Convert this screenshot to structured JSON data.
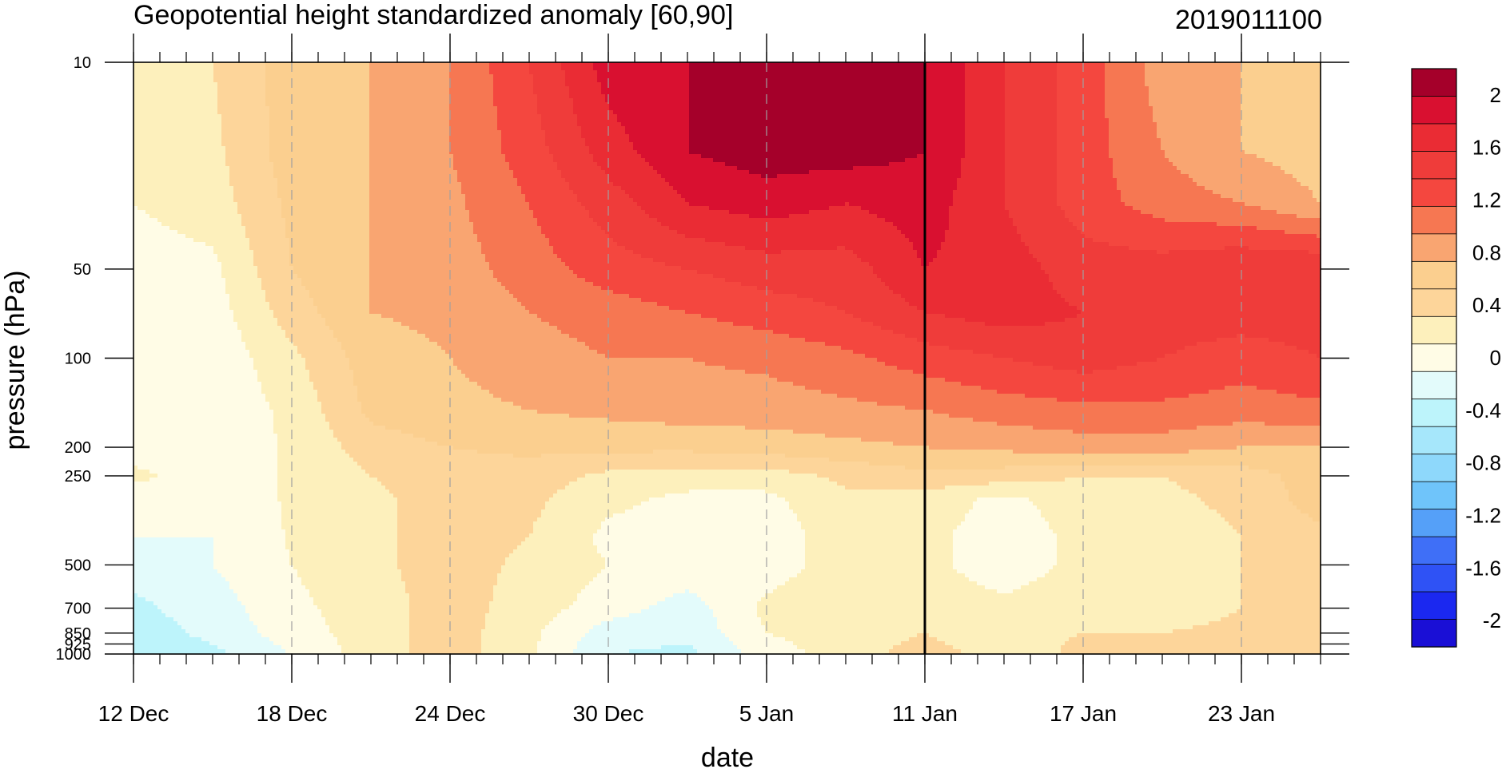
{
  "chart_data": {
    "type": "heatmap",
    "title": "Geopotential height standardized anomaly [60,90]",
    "subtitle_right": "2019011100",
    "xlabel": "date",
    "ylabel": "pressure (hPa)",
    "x_tick_labels": [
      "12 Dec",
      "18 Dec",
      "24 Dec",
      "30 Dec",
      "5 Jan",
      "11 Jan",
      "17 Jan",
      "23 Jan"
    ],
    "x_tick_day_offsets": [
      0,
      6,
      12,
      18,
      24,
      30,
      36,
      42
    ],
    "x_range_day_offsets": [
      0,
      45
    ],
    "y_tick_labels": [
      "10",
      "50",
      "100",
      "200",
      "250",
      "500",
      "700",
      "850",
      "925",
      "1000"
    ],
    "y_tick_values": [
      10,
      50,
      100,
      200,
      250,
      500,
      700,
      850,
      925,
      1000
    ],
    "y_range": [
      10,
      1000
    ],
    "y_scale": "log",
    "y_inverted": true,
    "marker_line_label": "11 Jan",
    "colorbar": {
      "labels": [
        "2",
        "1.6",
        "1.2",
        "0.8",
        "0.4",
        "0",
        "-0.4",
        "-0.8",
        "-1.2",
        "-1.6",
        "-2"
      ],
      "label_values": [
        2,
        1.6,
        1.2,
        0.8,
        0.4,
        0,
        -0.4,
        -0.8,
        -1.2,
        -1.6,
        -2
      ],
      "levels": [
        -2.2,
        -2.0,
        -1.8,
        -1.6,
        -1.4,
        -1.2,
        -1.0,
        -0.8,
        -0.6,
        -0.4,
        -0.2,
        0.0,
        0.2,
        0.4,
        0.6,
        0.8,
        1.0,
        1.2,
        1.4,
        1.6,
        1.8,
        2.0,
        2.2
      ],
      "colors": [
        "#1a0fd6",
        "#1b28f0",
        "#2f52f5",
        "#3f6ff7",
        "#55a0f8",
        "#6fc4fa",
        "#8ed8fb",
        "#a6e7fb",
        "#bdf4fb",
        "#e3fbfb",
        "#fffce6",
        "#fdf0bc",
        "#fdd59a",
        "#fbcf8f",
        "#f9a571",
        "#f67752",
        "#f4473f",
        "#ef3c3a",
        "#ea2c34",
        "#d91030",
        "#a5002a"
      ]
    },
    "field": {
      "x_day_offsets": [
        0,
        3,
        6,
        9,
        12,
        15,
        18,
        21,
        24,
        27,
        30,
        33,
        36,
        39,
        42,
        45
      ],
      "pressure_levels": [
        10,
        20,
        30,
        50,
        70,
        100,
        150,
        200,
        250,
        300,
        400,
        500,
        700,
        850,
        925,
        1000
      ],
      "values": [
        [
          0.1,
          0.2,
          0.5,
          0.6,
          0.8,
          1.2,
          1.7,
          1.8,
          1.9,
          1.8,
          1.8,
          1.4,
          1.1,
          0.7,
          0.6,
          0.5
        ],
        [
          0.05,
          0.15,
          0.5,
          0.6,
          0.8,
          1.1,
          1.5,
          1.8,
          1.9,
          1.9,
          1.8,
          1.4,
          1.1,
          0.8,
          0.6,
          0.5
        ],
        [
          0.0,
          0.1,
          0.45,
          0.6,
          0.75,
          1.0,
          1.3,
          1.6,
          1.7,
          1.6,
          1.7,
          1.4,
          1.1,
          0.9,
          0.8,
          0.6
        ],
        [
          -0.1,
          -0.05,
          0.4,
          0.6,
          0.7,
          0.9,
          1.1,
          1.2,
          1.3,
          1.3,
          1.6,
          1.5,
          1.3,
          1.3,
          1.4,
          1.4
        ],
        [
          -0.1,
          -0.1,
          0.3,
          0.6,
          0.65,
          0.8,
          0.9,
          1.0,
          1.1,
          1.2,
          1.4,
          1.5,
          1.4,
          1.3,
          1.3,
          1.3
        ],
        [
          -0.15,
          -0.15,
          0.15,
          0.5,
          0.6,
          0.7,
          0.8,
          0.8,
          0.85,
          0.95,
          1.1,
          1.2,
          1.3,
          1.2,
          1.1,
          1.2
        ],
        [
          -0.2,
          -0.15,
          0.05,
          0.45,
          0.55,
          0.6,
          0.65,
          0.7,
          0.7,
          0.75,
          0.8,
          0.9,
          0.95,
          0.95,
          0.9,
          0.95
        ],
        [
          -0.1,
          -0.1,
          0.02,
          0.3,
          0.4,
          0.45,
          0.45,
          0.45,
          0.5,
          0.55,
          0.6,
          0.65,
          0.7,
          0.7,
          0.6,
          0.6
        ],
        [
          0.05,
          -0.1,
          0.02,
          0.2,
          0.3,
          0.3,
          0.15,
          0.1,
          0.1,
          0.25,
          0.35,
          0.3,
          0.2,
          0.2,
          0.3,
          0.5
        ],
        [
          -0.1,
          -0.15,
          0.03,
          0.15,
          0.3,
          0.25,
          0.05,
          -0.05,
          -0.05,
          0.15,
          0.1,
          -0.05,
          0.1,
          0.15,
          0.25,
          0.5
        ],
        [
          -0.2,
          -0.2,
          0.02,
          0.15,
          0.3,
          0.2,
          -0.05,
          -0.1,
          -0.1,
          0.1,
          0.05,
          -0.1,
          0.05,
          0.1,
          0.2,
          0.35
        ],
        [
          -0.3,
          -0.2,
          0.0,
          0.15,
          0.3,
          0.15,
          0.0,
          -0.05,
          -0.1,
          0.1,
          0.05,
          -0.1,
          0.05,
          0.1,
          0.2,
          0.3
        ],
        [
          -0.45,
          -0.3,
          -0.05,
          0.1,
          0.3,
          0.1,
          -0.1,
          -0.3,
          0.05,
          0.15,
          0.1,
          0.05,
          0.1,
          0.1,
          0.2,
          0.3
        ],
        [
          -0.5,
          -0.35,
          -0.1,
          0.1,
          0.3,
          0.05,
          -0.3,
          -0.35,
          0.0,
          0.1,
          0.2,
          0.05,
          0.2,
          0.2,
          0.25,
          0.3
        ],
        [
          -0.55,
          -0.4,
          -0.15,
          0.1,
          0.3,
          0.05,
          -0.35,
          -0.4,
          -0.05,
          0.1,
          0.25,
          0.05,
          0.25,
          0.3,
          0.3,
          0.35
        ],
        [
          -0.6,
          -0.45,
          -0.2,
          0.1,
          0.3,
          0.05,
          -0.4,
          -0.45,
          -0.1,
          0.1,
          0.3,
          0.1,
          0.25,
          0.35,
          0.4,
          0.4
        ]
      ]
    }
  }
}
